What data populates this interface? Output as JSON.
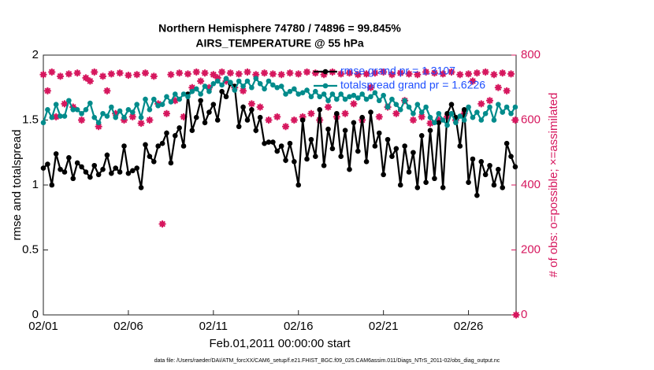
{
  "chart_data": {
    "type": "line",
    "title": "Northern Hemisphere 74780 / 74896 = 99.845%",
    "subtitle": "AIRS_TEMPERATURE @ 55 hPa",
    "xlabel": "Feb.01,2011 00:00:00 start",
    "ylabel": "rmse and totalspread",
    "y2label": "# of obs: o=possible; ×=assimilated",
    "footer": "data file: /Users/raeder/DAI/ATM_forcXX/CAM6_setup/f.e21.FHIST_BGC.f09_025.CAM6assim.011/Diags_NTrS_2011-02/obs_diag_output.nc",
    "xlim": [
      1,
      28.8
    ],
    "xticks": [
      {
        "value": 1,
        "label": "02/01"
      },
      {
        "value": 6,
        "label": "02/06"
      },
      {
        "value": 11,
        "label": "02/11"
      },
      {
        "value": 16,
        "label": "02/16"
      },
      {
        "value": 21,
        "label": "02/21"
      },
      {
        "value": 26,
        "label": "02/26"
      }
    ],
    "ylim": [
      0,
      2
    ],
    "yticks": [
      0,
      0.5,
      1,
      1.5,
      2
    ],
    "y2lim": [
      0,
      800
    ],
    "y2ticks": [
      0,
      200,
      400,
      600,
      800
    ],
    "legend_position": "upper right",
    "legend_text_color": "#1f4fff",
    "y2_color": "#d6175e",
    "x": [
      1,
      1.25,
      1.5,
      1.75,
      2,
      2.25,
      2.5,
      2.75,
      3,
      3.25,
      3.5,
      3.75,
      4,
      4.25,
      4.5,
      4.75,
      5,
      5.25,
      5.5,
      5.75,
      6,
      6.25,
      6.5,
      6.75,
      7,
      7.25,
      7.5,
      7.75,
      8,
      8.25,
      8.5,
      8.75,
      9,
      9.25,
      9.5,
      9.75,
      10,
      10.25,
      10.5,
      10.75,
      11,
      11.25,
      11.5,
      11.75,
      12,
      12.25,
      12.5,
      12.75,
      13,
      13.25,
      13.5,
      13.75,
      14,
      14.25,
      14.5,
      14.75,
      15,
      15.25,
      15.5,
      15.75,
      16,
      16.25,
      16.5,
      16.75,
      17,
      17.25,
      17.5,
      17.75,
      18,
      18.25,
      18.5,
      18.75,
      19,
      19.25,
      19.5,
      19.75,
      20,
      20.25,
      20.5,
      20.75,
      21,
      21.25,
      21.5,
      21.75,
      22,
      22.25,
      22.5,
      22.75,
      23,
      23.25,
      23.5,
      23.75,
      24,
      24.25,
      24.5,
      24.75,
      25,
      25.25,
      25.5,
      25.75,
      26,
      26.25,
      26.5,
      26.75,
      27,
      27.25,
      27.5,
      27.75,
      28,
      28.25,
      28.5,
      28.75,
      28.8
    ],
    "series": [
      {
        "name": "rmse grand pr = 1.3107",
        "color": "#000000",
        "values": [
          1.13,
          1.16,
          1.0,
          1.24,
          1.12,
          1.1,
          1.21,
          1.05,
          1.17,
          1.14,
          1.1,
          1.06,
          1.15,
          1.08,
          1.12,
          1.23,
          1.09,
          1.13,
          1.1,
          1.3,
          1.09,
          1.11,
          1.13,
          0.98,
          1.31,
          1.22,
          1.18,
          1.3,
          1.32,
          1.4,
          1.17,
          1.38,
          1.44,
          1.3,
          1.7,
          1.42,
          1.52,
          1.65,
          1.48,
          1.56,
          1.62,
          1.5,
          1.72,
          1.68,
          1.78,
          1.76,
          1.45,
          1.6,
          1.5,
          1.58,
          1.42,
          1.52,
          1.32,
          1.33,
          1.33,
          1.26,
          1.3,
          1.19,
          1.32,
          1.18,
          1.0,
          1.5,
          1.2,
          1.35,
          1.22,
          1.58,
          1.15,
          1.43,
          1.28,
          1.55,
          1.22,
          1.42,
          1.12,
          1.48,
          1.26,
          1.52,
          1.18,
          1.56,
          1.3,
          1.4,
          1.08,
          1.35,
          1.22,
          1.28,
          1.0,
          1.3,
          1.1,
          1.25,
          0.98,
          1.38,
          1.02,
          1.42,
          1.05,
          1.48,
          0.98,
          1.55,
          1.62,
          1.52,
          1.3,
          1.58,
          1.02,
          1.2,
          0.92,
          1.18,
          1.08,
          1.15,
          1.0,
          1.12,
          0.98,
          1.32,
          1.22,
          1.14,
          null
        ]
      },
      {
        "name": "totalspread grand pr = 1.6226",
        "color": "#008b8b",
        "values": [
          1.48,
          1.58,
          1.52,
          1.62,
          1.53,
          1.53,
          1.65,
          1.58,
          1.58,
          1.55,
          1.58,
          1.63,
          1.52,
          1.48,
          1.55,
          1.53,
          1.6,
          1.52,
          1.57,
          1.52,
          1.58,
          1.56,
          1.62,
          1.52,
          1.66,
          1.58,
          1.66,
          1.61,
          1.62,
          1.68,
          1.64,
          1.7,
          1.66,
          1.7,
          1.68,
          1.72,
          1.74,
          1.7,
          1.76,
          1.72,
          1.78,
          1.8,
          1.77,
          1.82,
          1.79,
          1.73,
          1.8,
          1.76,
          1.8,
          1.75,
          1.82,
          1.78,
          1.74,
          1.8,
          1.77,
          1.75,
          1.76,
          1.7,
          1.72,
          1.74,
          1.7,
          1.71,
          1.73,
          1.68,
          1.72,
          1.68,
          1.7,
          1.65,
          1.7,
          1.66,
          1.7,
          1.66,
          1.68,
          1.69,
          1.67,
          1.7,
          1.66,
          1.68,
          1.71,
          1.65,
          1.69,
          1.6,
          1.66,
          1.62,
          1.58,
          1.65,
          1.6,
          1.55,
          1.62,
          1.56,
          1.6,
          1.52,
          1.48,
          1.55,
          1.5,
          1.46,
          1.55,
          1.48,
          1.53,
          1.5,
          1.6,
          1.52,
          1.56,
          1.5,
          1.55,
          1.6,
          1.5,
          1.62,
          1.56,
          1.6,
          1.55,
          1.6,
          null
        ]
      }
    ],
    "y2_values": [
      740,
      690,
      748,
      610,
      735,
      650,
      742,
      640,
      745,
      600,
      730,
      720,
      748,
      580,
      735,
      690,
      742,
      620,
      745,
      600,
      738,
      610,
      740,
      590,
      745,
      600,
      735,
      650,
      280,
      620,
      740,
      660,
      745,
      610,
      742,
      700,
      748,
      720,
      745,
      700,
      740,
      730,
      748,
      720,
      745,
      700,
      742,
      690,
      748,
      650,
      740,
      640,
      745,
      600,
      742,
      610,
      740,
      580,
      745,
      600,
      742,
      610,
      748,
      620,
      745,
      600,
      740,
      640,
      748,
      610,
      742,
      620,
      745,
      650,
      740,
      600,
      742,
      700,
      745,
      610,
      748,
      640,
      740,
      620,
      745,
      660,
      742,
      600,
      740,
      610,
      748,
      590,
      745,
      600,
      742,
      610,
      748,
      600,
      740,
      620,
      742,
      720,
      745,
      650,
      748,
      660,
      740,
      700,
      745,
      690,
      742,
      600,
      0
    ]
  }
}
